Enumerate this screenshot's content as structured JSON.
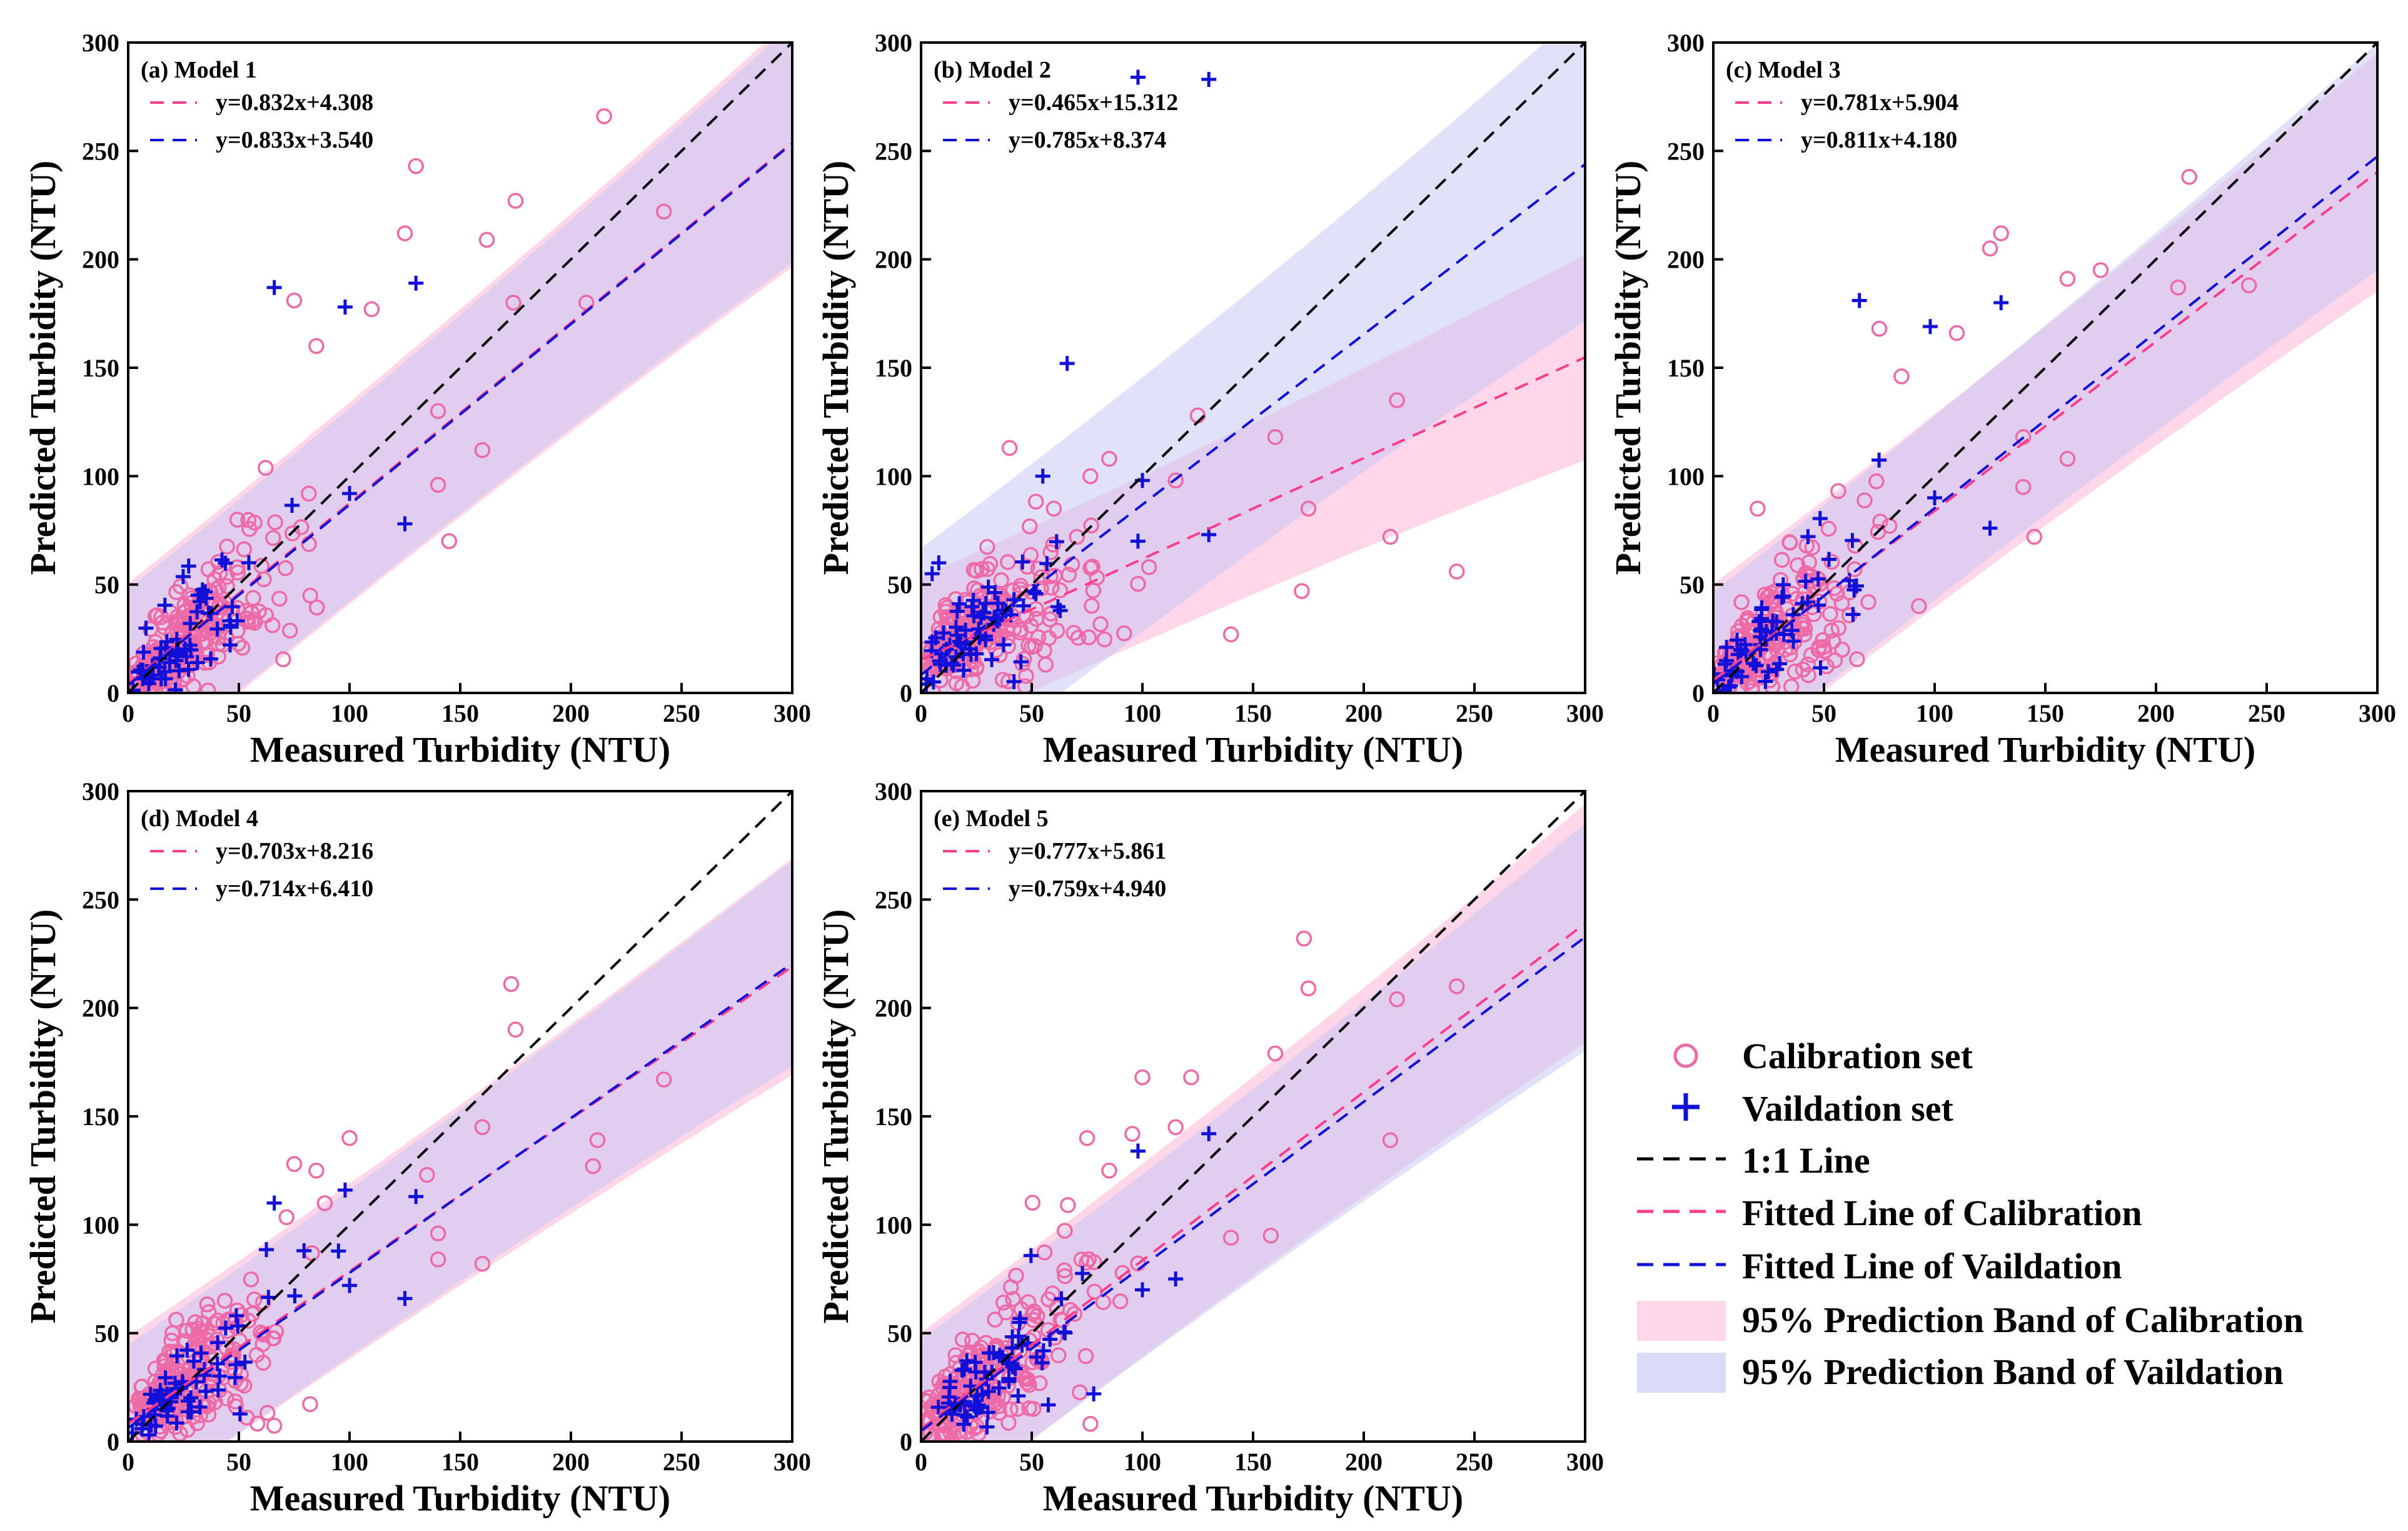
{
  "colors": {
    "calibration": "#ff3d8b",
    "calibration_marker": "#ee6aa7",
    "validation": "#1010d8",
    "one_to_one": "#000000",
    "cal_band": "#ffb6d6",
    "val_band": "#c3c5f5"
  },
  "legend": {
    "calibration_set": "Calibration set",
    "validation_set": "Vaildation set",
    "one_to_one": "1:1 Line",
    "fit_calibration": "Fitted Line of Calibration",
    "fit_validation": "Fitted Line of Vaildation",
    "band_calibration": "95% Prediction Band of Calibration",
    "band_validation": "95% Prediction Band of Vaildation"
  },
  "axes": {
    "xlabel": "Measured Turbidity (NTU)",
    "ylabel": "Predicted Turbidity (NTU)",
    "xlim": [
      0,
      300
    ],
    "ylim": [
      0,
      300
    ],
    "ticks": [
      "0",
      "50",
      "100",
      "150",
      "200",
      "250",
      "300"
    ]
  },
  "chart_data": [
    {
      "type": "scatter",
      "panel": "(a) Model 1",
      "cal_fit": {
        "slope": 0.832,
        "intercept": 4.308,
        "label": "y=0.832x+4.308"
      },
      "val_fit": {
        "slope": 0.833,
        "intercept": 3.54,
        "label": "y=0.833x+3.540"
      },
      "cal_band_halfwidth": 46,
      "val_band_halfwidth": 44,
      "outliers_cal": [
        [
          215,
          266
        ],
        [
          130,
          243
        ],
        [
          175,
          227
        ],
        [
          242,
          222
        ],
        [
          125,
          212
        ],
        [
          162,
          209
        ],
        [
          110,
          177
        ],
        [
          75,
          181
        ],
        [
          85,
          160
        ],
        [
          174,
          180
        ],
        [
          207,
          180
        ],
        [
          140,
          130
        ],
        [
          160,
          112
        ],
        [
          140,
          96
        ],
        [
          145,
          70
        ]
      ],
      "outliers_val": [
        [
          66,
          187
        ],
        [
          98,
          178
        ],
        [
          130,
          189
        ],
        [
          100,
          92
        ],
        [
          125,
          78
        ]
      ]
    },
    {
      "type": "scatter",
      "panel": "(b) Model 2",
      "cal_fit": {
        "slope": 0.465,
        "intercept": 15.312,
        "label": "y=0.465x+15.312"
      },
      "val_fit": {
        "slope": 0.785,
        "intercept": 8.374,
        "label": "y=0.785x+8.374"
      },
      "cal_band_halfwidth": 38,
      "val_band_halfwidth": 58,
      "outliers_cal": [
        [
          215,
          135
        ],
        [
          212,
          72
        ],
        [
          242,
          56
        ],
        [
          175,
          85
        ],
        [
          172,
          47
        ],
        [
          140,
          27
        ],
        [
          125,
          128
        ],
        [
          160,
          118
        ],
        [
          115,
          98
        ],
        [
          103,
          58
        ],
        [
          85,
          108
        ],
        [
          40,
          113
        ],
        [
          60,
          85
        ]
      ],
      "outliers_val": [
        [
          98,
          284
        ],
        [
          130,
          283
        ],
        [
          66,
          152
        ],
        [
          55,
          100
        ],
        [
          100,
          98
        ],
        [
          130,
          73
        ],
        [
          98,
          70
        ],
        [
          8,
          60
        ],
        [
          5,
          55
        ]
      ]
    },
    {
      "type": "scatter",
      "panel": "(c) Model 3",
      "cal_fit": {
        "slope": 0.781,
        "intercept": 5.904,
        "label": "y=0.781x+5.904"
      },
      "val_fit": {
        "slope": 0.811,
        "intercept": 4.18,
        "label": "y=0.811x+4.180"
      },
      "cal_band_halfwidth": 44,
      "val_band_halfwidth": 42,
      "outliers_cal": [
        [
          215,
          238
        ],
        [
          130,
          212
        ],
        [
          125,
          205
        ],
        [
          175,
          195
        ],
        [
          210,
          187
        ],
        [
          242,
          188
        ],
        [
          160,
          191
        ],
        [
          110,
          166
        ],
        [
          75,
          168
        ],
        [
          85,
          146
        ],
        [
          140,
          118
        ],
        [
          160,
          108
        ],
        [
          140,
          95
        ],
        [
          145,
          72
        ],
        [
          20,
          85
        ]
      ],
      "outliers_val": [
        [
          66,
          181
        ],
        [
          98,
          169
        ],
        [
          130,
          180
        ],
        [
          100,
          90
        ],
        [
          125,
          76
        ]
      ]
    },
    {
      "type": "scatter",
      "panel": "(d) Model 4",
      "cal_fit": {
        "slope": 0.703,
        "intercept": 8.216,
        "label": "y=0.703x+8.216"
      },
      "val_fit": {
        "slope": 0.714,
        "intercept": 6.41,
        "label": "y=0.714x+6.410"
      },
      "cal_band_halfwidth": 40,
      "val_band_halfwidth": 38,
      "outliers_cal": [
        [
          173,
          211
        ],
        [
          175,
          190
        ],
        [
          242,
          167
        ],
        [
          212,
          139
        ],
        [
          210,
          127
        ],
        [
          160,
          145
        ],
        [
          160,
          82
        ],
        [
          140,
          96
        ],
        [
          135,
          123
        ],
        [
          100,
          140
        ],
        [
          75,
          128
        ],
        [
          85,
          125
        ],
        [
          140,
          84
        ],
        [
          20,
          50
        ]
      ],
      "outliers_val": [
        [
          66,
          110
        ],
        [
          98,
          116
        ],
        [
          130,
          113
        ],
        [
          100,
          72
        ],
        [
          125,
          66
        ]
      ]
    },
    {
      "type": "scatter",
      "panel": "(e) Model 5",
      "cal_fit": {
        "slope": 0.777,
        "intercept": 5.861,
        "label": "y=0.777x+5.861"
      },
      "val_fit": {
        "slope": 0.759,
        "intercept": 4.94,
        "label": "y=0.759x+4.940"
      },
      "cal_band_halfwidth": 44,
      "val_band_halfwidth": 42,
      "outliers_cal": [
        [
          173,
          232
        ],
        [
          175,
          209
        ],
        [
          242,
          210
        ],
        [
          215,
          204
        ],
        [
          212,
          139
        ],
        [
          160,
          179
        ],
        [
          100,
          168
        ],
        [
          122,
          168
        ],
        [
          115,
          145
        ],
        [
          158,
          95
        ],
        [
          140,
          94
        ],
        [
          75,
          140
        ],
        [
          85,
          125
        ],
        [
          20,
          38
        ]
      ],
      "outliers_val": [
        [
          98,
          134
        ],
        [
          130,
          142
        ],
        [
          100,
          70
        ],
        [
          115,
          75
        ],
        [
          78,
          22
        ]
      ]
    }
  ]
}
